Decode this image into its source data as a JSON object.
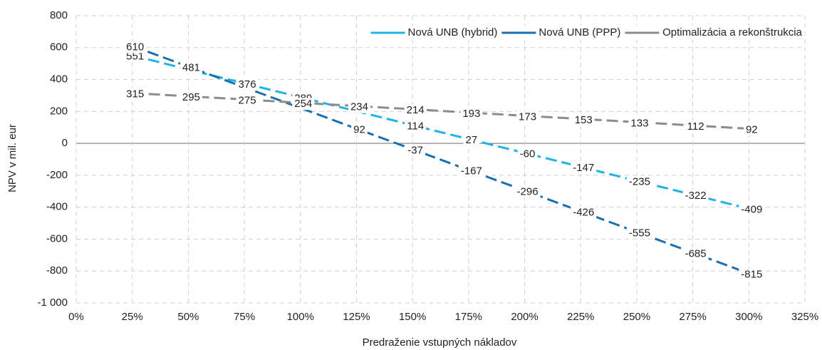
{
  "chart_data": {
    "type": "line",
    "xlabel": "Predraženie vstupných nákladov",
    "ylabel": "NPV v mil. eur",
    "x": [
      25,
      50,
      75,
      100,
      125,
      150,
      175,
      200,
      225,
      250,
      275,
      300
    ],
    "series": [
      {
        "name": "Nová UNB (hybrid)",
        "color": "#1fb4e6",
        "values": [
          551,
          463,
          376,
          289,
          202,
          114,
          27,
          -60,
          -147,
          -235,
          -322,
          -409
        ],
        "value_labels": [
          551,
          null,
          376,
          289,
          null,
          114,
          27,
          -60,
          -147,
          -235,
          -322,
          -409
        ]
      },
      {
        "name": "Nová UNB (PPP)",
        "color": "#1a6fb0",
        "values": [
          610,
          481,
          351,
          222,
          92,
          -37,
          -167,
          -296,
          -426,
          -555,
          -685,
          -815
        ],
        "value_labels": [
          610,
          481,
          null,
          null,
          92,
          -37,
          -167,
          -296,
          -426,
          -555,
          -685,
          -815
        ]
      },
      {
        "name": "Optimalizácia a rekonštrukcia",
        "color": "#8c8c8c",
        "values": [
          315,
          295,
          275,
          254,
          234,
          214,
          193,
          173,
          153,
          133,
          112,
          92
        ],
        "value_labels": [
          315,
          295,
          275,
          254,
          234,
          214,
          193,
          173,
          153,
          133,
          112,
          92
        ]
      }
    ],
    "xlim": [
      0,
      325
    ],
    "xticks": [
      {
        "value": 0,
        "label": "0%"
      },
      {
        "value": 25,
        "label": "25%"
      },
      {
        "value": 50,
        "label": "50%"
      },
      {
        "value": 75,
        "label": "75%"
      },
      {
        "value": 100,
        "label": "100%"
      },
      {
        "value": 125,
        "label": "125%"
      },
      {
        "value": 150,
        "label": "150%"
      },
      {
        "value": 175,
        "label": "175%"
      },
      {
        "value": 200,
        "label": "200%"
      },
      {
        "value": 225,
        "label": "225%"
      },
      {
        "value": 250,
        "label": "250%"
      },
      {
        "value": 275,
        "label": "275%"
      },
      {
        "value": 300,
        "label": "300%"
      },
      {
        "value": 325,
        "label": "325%"
      }
    ],
    "ylim": [
      -1000,
      800
    ],
    "yticks": [
      {
        "value": -1000,
        "label": "-1 000"
      },
      -800,
      -600,
      -400,
      -200,
      0,
      200,
      400,
      600,
      800
    ],
    "grid": true,
    "legend": "top-right"
  }
}
